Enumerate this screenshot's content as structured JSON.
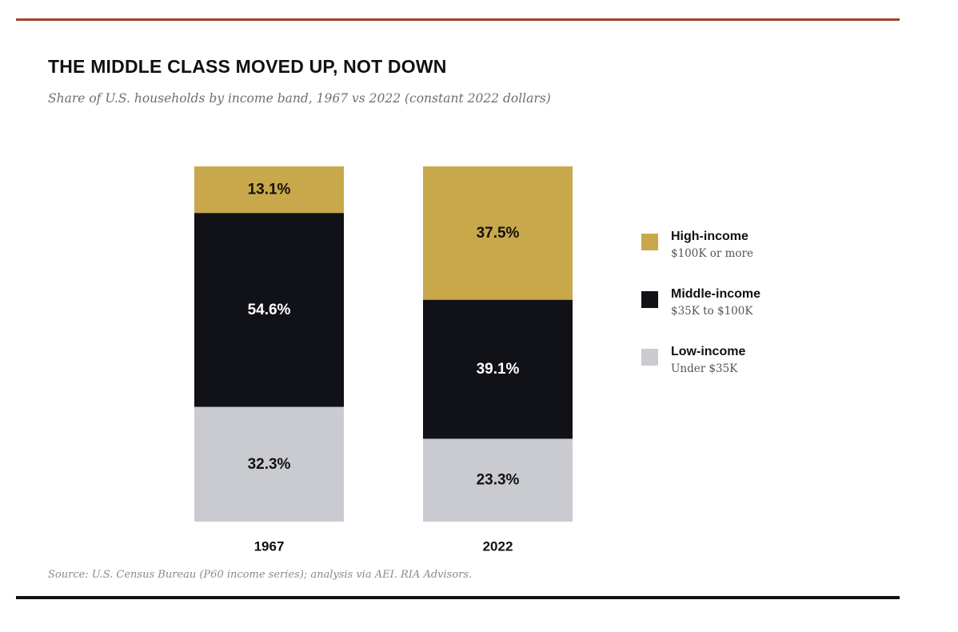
{
  "chart_data": {
    "type": "bar",
    "stacked": true,
    "title": "THE MIDDLE CLASS MOVED UP, NOT DOWN",
    "subtitle": "Share of U.S. households by income band, 1967 vs 2022 (constant 2022 dollars)",
    "categories": [
      "1967",
      "2022"
    ],
    "series": [
      {
        "name": "Low-income",
        "description": "Under $35K",
        "color": "#c9cbd1",
        "label_color": "#111111",
        "values": [
          32.3,
          23.3
        ],
        "labels": [
          "32.3%",
          "23.3%"
        ]
      },
      {
        "name": "Middle-income",
        "description": "$35K to $100K",
        "color": "#111217",
        "label_color": "#ffffff",
        "values": [
          54.6,
          39.1
        ],
        "labels": [
          "54.6%",
          "39.1%"
        ]
      },
      {
        "name": "High-income",
        "description": "$100K or more",
        "color": "#c8a84a",
        "label_color": "#111111",
        "values": [
          13.1,
          37.5
        ],
        "labels": [
          "13.1%",
          "37.5%"
        ]
      }
    ],
    "ylim": [
      0,
      100
    ],
    "grid": false,
    "legend_position": "right",
    "source": "Source: U.S. Census Bureau (P60 income series); analysis via AEI. RIA Advisors."
  },
  "rules": {
    "top_color": "#a0432a",
    "bottom_color": "#111111"
  }
}
